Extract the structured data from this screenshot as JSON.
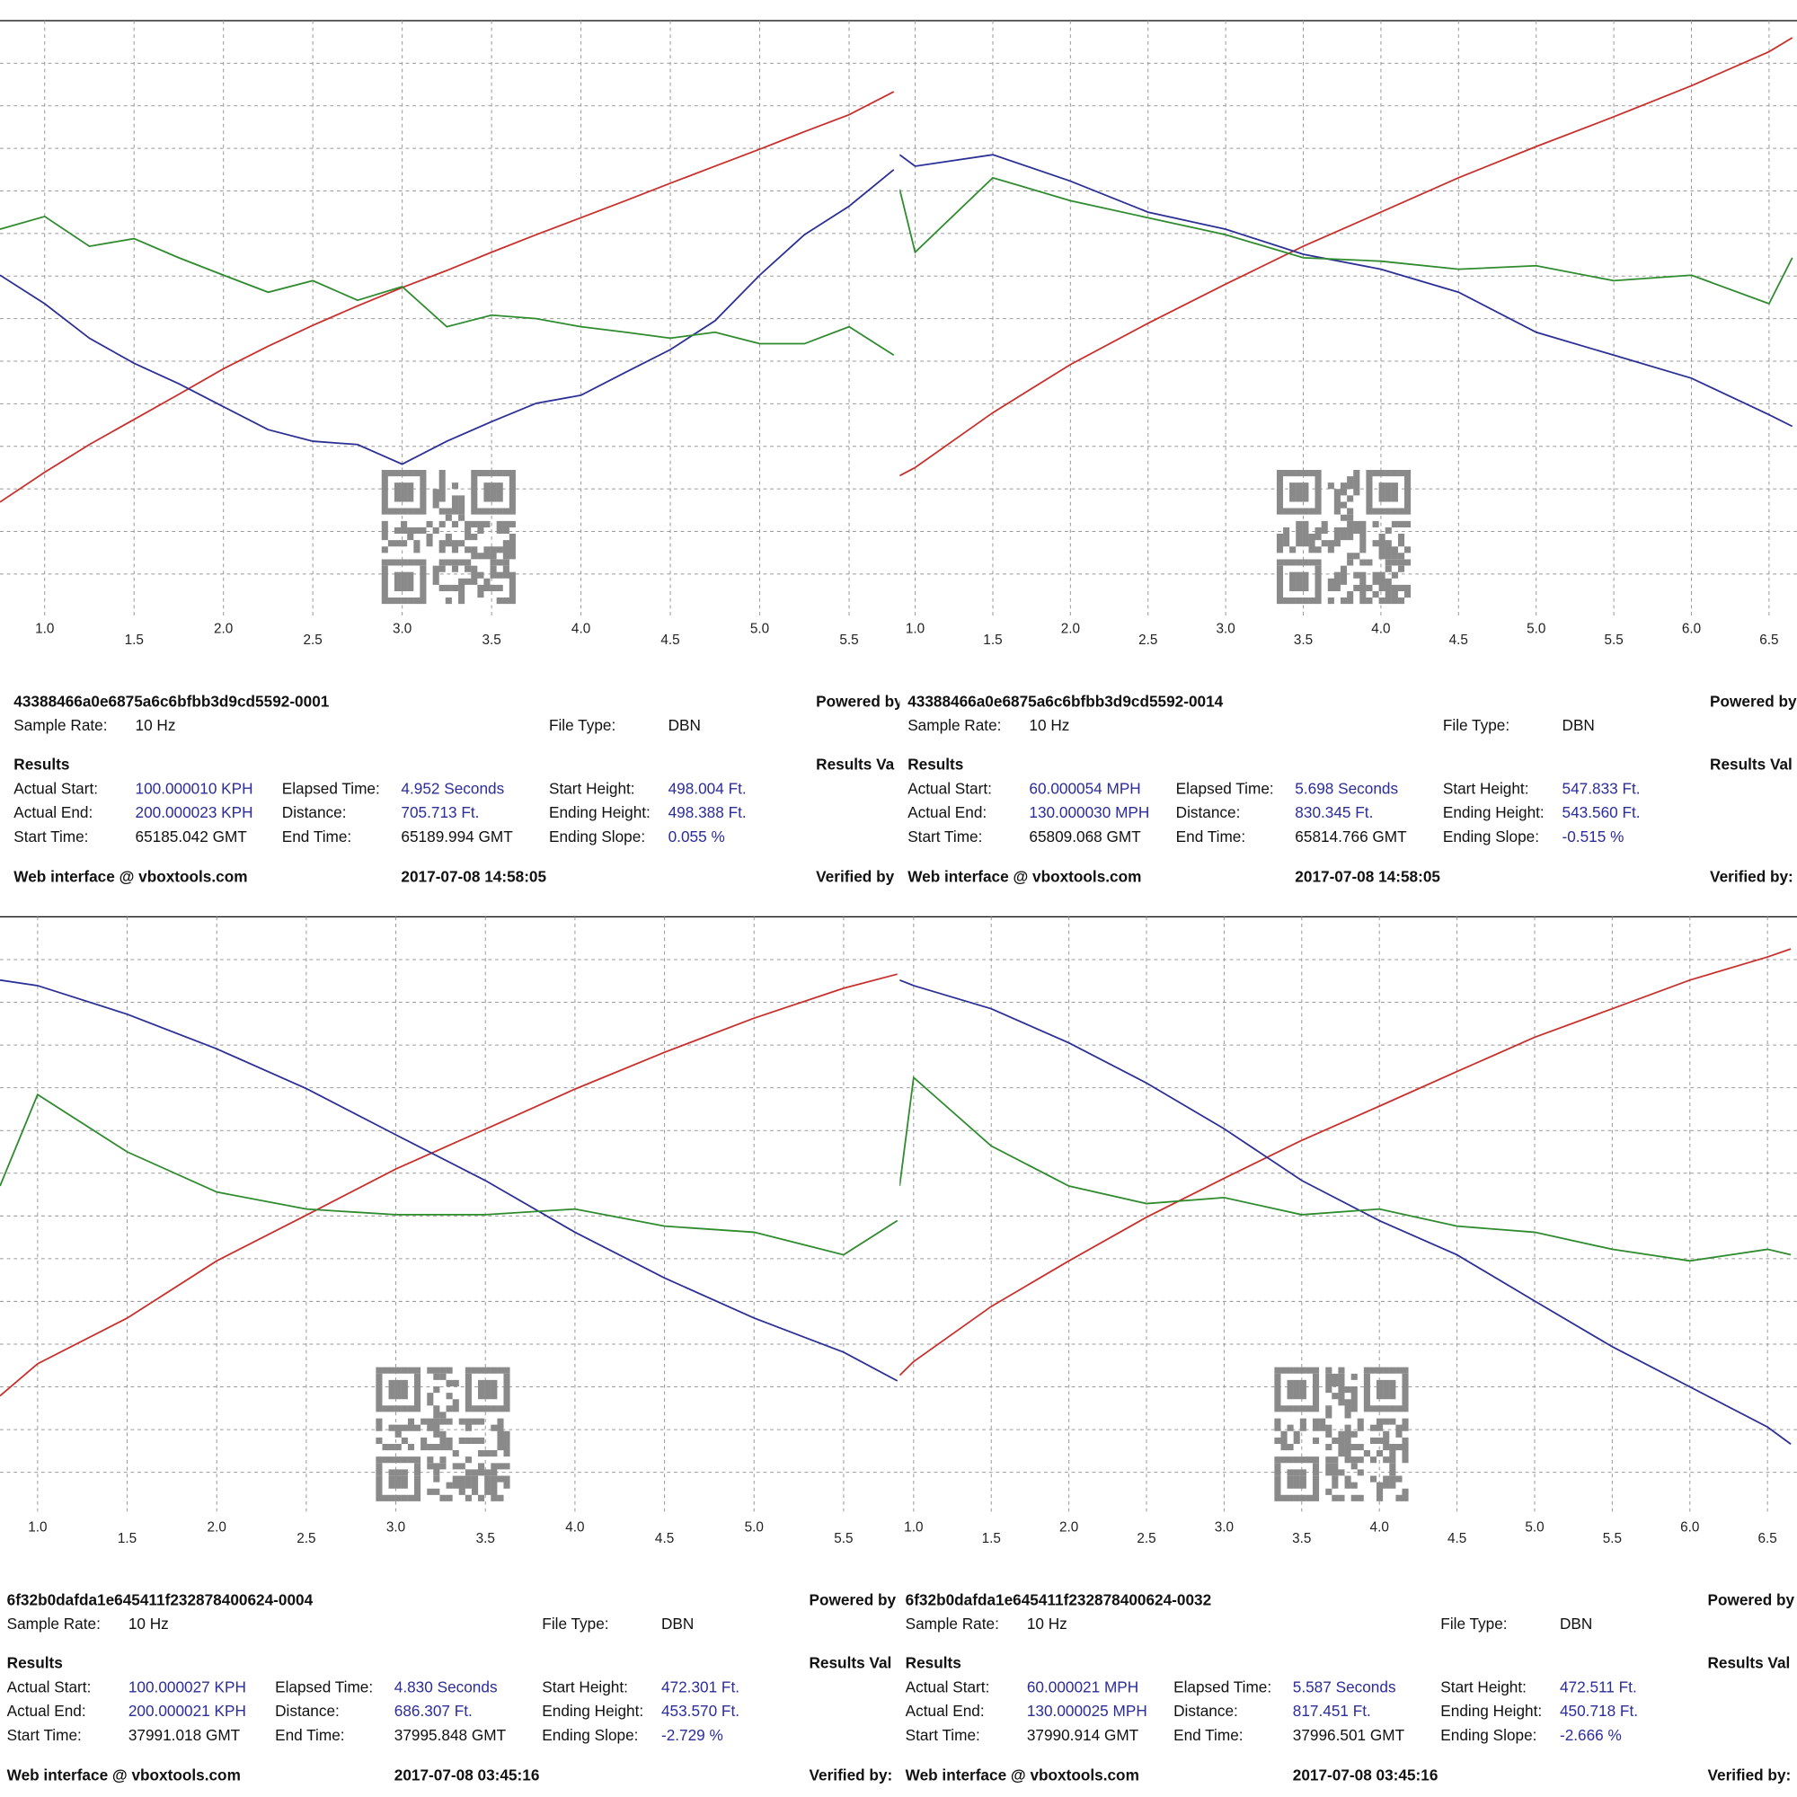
{
  "chart_data": [
    {
      "type": "line",
      "x": [
        0.75,
        1.0,
        1.25,
        1.5,
        1.75,
        2.0,
        2.25,
        2.5,
        2.75,
        3.0,
        3.25,
        3.5,
        3.75,
        4.0,
        4.25,
        4.5,
        4.75,
        5.0,
        5.25,
        5.5,
        5.75
      ],
      "xlim": [
        0.75,
        5.77
      ],
      "ylim": [
        0,
        14
      ],
      "xticks": [
        {
          "value": 1,
          "label": "1.0"
        },
        1.5,
        {
          "value": 2,
          "label": "2.0"
        },
        2.5,
        {
          "value": 3,
          "label": "3.0"
        },
        3.5,
        {
          "value": 4,
          "label": "4.0"
        },
        4.5,
        {
          "value": 5,
          "label": "5.0"
        },
        5.5
      ],
      "yticks": [
        1,
        2,
        3,
        4,
        5,
        6,
        7,
        8,
        9,
        10,
        11,
        12,
        13
      ],
      "grid": true,
      "series": [
        {
          "color": "#c8302c",
          "values": [
            2.69,
            3.39,
            4.04,
            4.63,
            5.22,
            5.82,
            6.35,
            6.84,
            7.3,
            7.73,
            8.13,
            8.56,
            8.97,
            9.37,
            9.77,
            10.18,
            10.58,
            10.98,
            11.39,
            11.79,
            12.33
          ]
        },
        {
          "color": "#2b2f96",
          "values": [
            8.02,
            7.35,
            6.54,
            5.95,
            5.47,
            4.93,
            4.39,
            4.12,
            4.04,
            3.58,
            4.12,
            4.58,
            5.01,
            5.2,
            5.74,
            6.27,
            6.95,
            8.02,
            8.97,
            9.64,
            10.5
          ]
        },
        {
          "color": "#2e8b2e",
          "values": [
            9.1,
            9.4,
            8.7,
            8.88,
            8.43,
            8.02,
            7.62,
            7.89,
            7.43,
            7.75,
            6.81,
            7.08,
            7.0,
            6.81,
            6.68,
            6.54,
            6.68,
            6.41,
            6.41,
            6.81,
            6.14
          ]
        }
      ]
    },
    {
      "type": "line",
      "x": [
        0.9,
        1.0,
        1.5,
        2.0,
        2.5,
        3.0,
        3.5,
        4.0,
        4.5,
        5.0,
        5.5,
        6.0,
        6.5,
        6.65
      ],
      "xlim": [
        0.9,
        6.68
      ],
      "ylim": [
        0,
        14
      ],
      "xticks": [
        {
          "value": 1,
          "label": "1.0"
        },
        1.5,
        {
          "value": 2,
          "label": "2.0"
        },
        2.5,
        {
          "value": 3,
          "label": "3.0"
        },
        3.5,
        {
          "value": 4,
          "label": "4.0"
        },
        4.5,
        {
          "value": 5,
          "label": "5.0"
        },
        5.5,
        {
          "value": 6,
          "label": "6.0"
        },
        6.5
      ],
      "yticks": [
        1,
        2,
        3,
        4,
        5,
        6,
        7,
        8,
        9,
        10,
        11,
        12,
        13
      ],
      "grid": true,
      "series": [
        {
          "color": "#c8302c",
          "values": [
            3.31,
            3.5,
            4.79,
            5.92,
            6.89,
            7.81,
            8.7,
            9.5,
            10.31,
            11.04,
            11.74,
            12.47,
            13.27,
            13.6
          ]
        },
        {
          "color": "#2b2f96",
          "values": [
            10.85,
            10.58,
            10.85,
            10.23,
            9.5,
            9.1,
            8.51,
            8.16,
            7.62,
            6.68,
            6.14,
            5.6,
            4.74,
            4.47
          ]
        },
        {
          "color": "#2e8b2e",
          "values": [
            10.04,
            8.56,
            10.31,
            9.77,
            9.37,
            8.97,
            8.43,
            8.35,
            8.16,
            8.24,
            7.89,
            8.02,
            7.35,
            8.43
          ]
        }
      ]
    },
    {
      "type": "line",
      "x": [
        0.79,
        1.0,
        1.5,
        2.0,
        2.5,
        3.0,
        3.5,
        4.0,
        4.5,
        5.0,
        5.5,
        5.8
      ],
      "xlim": [
        0.79,
        5.8
      ],
      "ylim": [
        0,
        14
      ],
      "xticks": [
        {
          "value": 1,
          "label": "1.0"
        },
        1.5,
        {
          "value": 2,
          "label": "2.0"
        },
        2.5,
        {
          "value": 3,
          "label": "3.0"
        },
        3.5,
        {
          "value": 4,
          "label": "4.0"
        },
        4.5,
        {
          "value": 5,
          "label": "5.0"
        },
        5.5
      ],
      "yticks": [
        1,
        2,
        3,
        4,
        5,
        6,
        7,
        8,
        9,
        10,
        11,
        12,
        13
      ],
      "grid": true,
      "series": [
        {
          "color": "#c8302c",
          "values": [
            2.79,
            3.54,
            4.61,
            5.95,
            7.02,
            8.1,
            9.03,
            9.97,
            10.83,
            11.63,
            12.33,
            12.66
          ]
        },
        {
          "color": "#2b2f96",
          "values": [
            12.52,
            12.39,
            11.72,
            10.91,
            9.98,
            8.9,
            7.83,
            6.62,
            5.55,
            4.61,
            3.81,
            3.14
          ]
        },
        {
          "color": "#2e8b2e",
          "values": [
            7.7,
            9.84,
            8.5,
            7.56,
            7.16,
            7.03,
            7.03,
            7.16,
            6.76,
            6.62,
            6.09,
            6.89
          ]
        }
      ]
    },
    {
      "type": "line",
      "x": [
        0.91,
        1.0,
        1.5,
        2.0,
        2.5,
        3.0,
        3.5,
        4.0,
        4.5,
        5.0,
        5.5,
        6.0,
        6.5,
        6.65
      ],
      "xlim": [
        0.91,
        6.69
      ],
      "ylim": [
        0,
        14
      ],
      "xticks": [
        {
          "value": 1,
          "label": "1.0"
        },
        1.5,
        {
          "value": 2,
          "label": "2.0"
        },
        2.5,
        {
          "value": 3,
          "label": "3.0"
        },
        3.5,
        {
          "value": 4,
          "label": "4.0"
        },
        4.5,
        {
          "value": 5,
          "label": "5.0"
        },
        5.5,
        {
          "value": 6,
          "label": "6.0"
        },
        6.5
      ],
      "yticks": [
        1,
        2,
        3,
        4,
        5,
        6,
        7,
        8,
        9,
        10,
        11,
        12,
        13
      ],
      "grid": true,
      "series": [
        {
          "color": "#c8302c",
          "values": [
            3.27,
            3.59,
            4.88,
            5.95,
            6.97,
            7.88,
            8.77,
            9.57,
            10.38,
            11.18,
            11.85,
            12.52,
            13.06,
            13.25
          ]
        },
        {
          "color": "#2b2f96",
          "values": [
            12.52,
            12.39,
            11.85,
            11.05,
            10.11,
            9.04,
            7.83,
            6.89,
            6.09,
            5.01,
            3.94,
            3.0,
            2.06,
            1.66
          ]
        },
        {
          "color": "#2e8b2e",
          "values": [
            7.7,
            10.24,
            8.64,
            7.7,
            7.29,
            7.43,
            7.03,
            7.16,
            6.76,
            6.62,
            6.22,
            5.95,
            6.22,
            6.09
          ]
        }
      ]
    }
  ],
  "panels": [
    {
      "id": "43388466a0e6875a6c6bfbb3d9cd5592-0001",
      "powered_by": "Powered by",
      "sample_rate_label": "Sample Rate:",
      "sample_rate": "10 Hz",
      "file_type_label": "File Type:",
      "file_type": "DBN",
      "results": "Results",
      "results_values": "Results Va",
      "rows": [
        [
          "Actual Start:",
          "100.000010 KPH",
          "Elapsed Time:",
          "4.952 Seconds",
          "Start Height:",
          "498.004 Ft."
        ],
        [
          "Actual End:",
          "200.000023 KPH",
          "Distance:",
          "705.713 Ft.",
          "Ending Height:",
          "498.388 Ft."
        ],
        [
          "Start Time:",
          "65185.042 GMT",
          "End Time:",
          "65189.994 GMT",
          "Ending Slope:",
          "0.055 %"
        ]
      ],
      "web": "Web interface @ vboxtools.com",
      "date": "2017-07-08 14:58:05",
      "verified": "Verified by"
    },
    {
      "id": "43388466a0e6875a6c6bfbb3d9cd5592-0014",
      "powered_by": "Powered by",
      "sample_rate_label": "Sample Rate:",
      "sample_rate": "10 Hz",
      "file_type_label": "File Type:",
      "file_type": "DBN",
      "results": "Results",
      "results_values": "Results Val",
      "rows": [
        [
          "Actual Start:",
          "60.000054 MPH",
          "Elapsed Time:",
          "5.698 Seconds",
          "Start Height:",
          "547.833 Ft."
        ],
        [
          "Actual End:",
          "130.000030 MPH",
          "Distance:",
          "830.345 Ft.",
          "Ending Height:",
          "543.560 Ft."
        ],
        [
          "Start Time:",
          "65809.068 GMT",
          "End Time:",
          "65814.766 GMT",
          "Ending Slope:",
          "-0.515 %"
        ]
      ],
      "web": "Web interface @ vboxtools.com",
      "date": "2017-07-08 14:58:05",
      "verified": "Verified by:"
    },
    {
      "id": "6f32b0dafda1e645411f232878400624-0004",
      "powered_by": "Powered by",
      "sample_rate_label": "Sample Rate:",
      "sample_rate": "10 Hz",
      "file_type_label": "File Type:",
      "file_type": "DBN",
      "results": "Results",
      "results_values": "Results Val",
      "rows": [
        [
          "Actual Start:",
          "100.000027 KPH",
          "Elapsed Time:",
          "4.830 Seconds",
          "Start Height:",
          "472.301 Ft."
        ],
        [
          "Actual End:",
          "200.000021 KPH",
          "Distance:",
          "686.307 Ft.",
          "Ending Height:",
          "453.570 Ft."
        ],
        [
          "Start Time:",
          "37991.018 GMT",
          "End Time:",
          "37995.848 GMT",
          "Ending Slope:",
          "-2.729 %"
        ]
      ],
      "web": "Web interface @ vboxtools.com",
      "date": "2017-07-08 03:45:16",
      "verified": "Verified by:"
    },
    {
      "id": "6f32b0dafda1e645411f232878400624-0032",
      "powered_by": "Powered by",
      "sample_rate_label": "Sample Rate:",
      "sample_rate": "10 Hz",
      "file_type_label": "File Type:",
      "file_type": "DBN",
      "results": "Results",
      "results_values": "Results Val",
      "rows": [
        [
          "Actual Start:",
          "60.000021 MPH",
          "Elapsed Time:",
          "5.587 Seconds",
          "Start Height:",
          "472.511 Ft."
        ],
        [
          "Actual End:",
          "130.000025 MPH",
          "Distance:",
          "817.451 Ft.",
          "Ending Height:",
          "450.718 Ft."
        ],
        [
          "Start Time:",
          "37990.914 GMT",
          "End Time:",
          "37996.501 GMT",
          "Ending Slope:",
          "-2.666 %"
        ]
      ],
      "web": "Web interface @ vboxtools.com",
      "date": "2017-07-08 03:45:16",
      "verified": "Verified by:"
    }
  ]
}
